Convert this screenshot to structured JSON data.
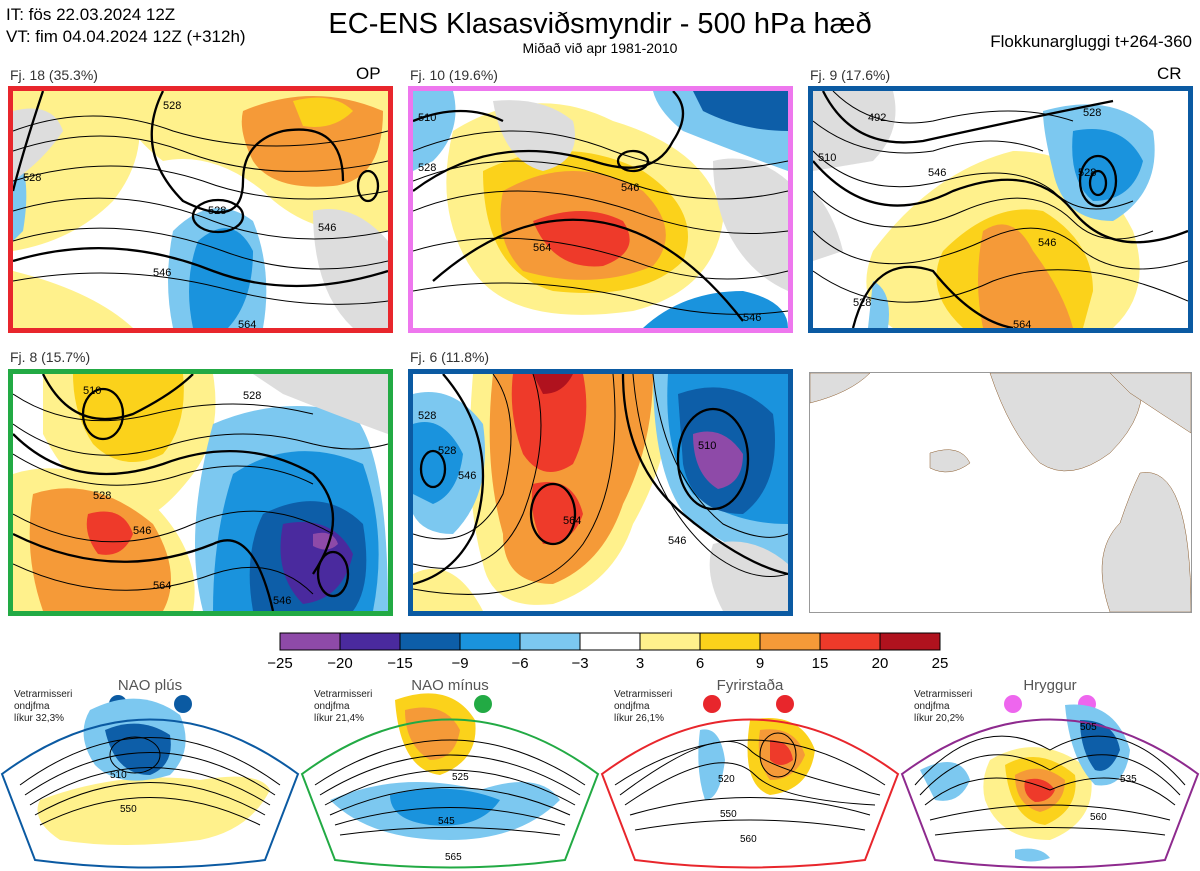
{
  "header": {
    "it_line": "IT: fös 22.03.2024 12Z",
    "vt_line": "VT: fim 04.04.2024 12Z  (+312h)",
    "title": "EC-ENS Klasasviðsmyndir - 500 hPa hæð",
    "subtitle": "Miðað við apr 1981-2010",
    "window": "Flokkunargluggi t+264-360"
  },
  "panels": [
    {
      "label": "Fj. 18 (35.3%)",
      "tag": "OP",
      "border": "#e8262c",
      "contours": [
        "528",
        "528",
        "546",
        "546",
        "564",
        "528"
      ]
    },
    {
      "label": "Fj. 10 (19.6%)",
      "tag": "",
      "border": "#ee77ee",
      "contours": [
        "510",
        "528",
        "546",
        "564",
        "546"
      ]
    },
    {
      "label": "Fj. 9 (17.6%)",
      "tag": "CR",
      "border": "#0b5aa2",
      "contours": [
        "492",
        "510",
        "528",
        "528",
        "546",
        "546",
        "528",
        "564"
      ]
    },
    {
      "label": "Fj. 8 (15.7%)",
      "tag": "",
      "border": "#22aa44",
      "contours": [
        "510",
        "528",
        "528",
        "546",
        "564",
        "546"
      ]
    },
    {
      "label": "Fj. 6 (11.8%)",
      "tag": "",
      "border": "#0b5aa2",
      "contours": [
        "528",
        "528",
        "546",
        "510",
        "564",
        "546"
      ]
    }
  ],
  "colorbar": {
    "ticks": [
      "−25",
      "−20",
      "−15",
      "−9",
      "−6",
      "−3",
      "3",
      "6",
      "9",
      "15",
      "20",
      "25"
    ],
    "colors": [
      "#8e4aa8",
      "#4a2a9e",
      "#0d5ea8",
      "#1a93dd",
      "#7cc8f0",
      "#ffffff",
      "#fff18c",
      "#fbd21b",
      "#f59a38",
      "#ee3a2a",
      "#b0121e"
    ]
  },
  "regimes": [
    {
      "title": "NAO plús",
      "note": [
        "Vetrarmisseri",
        "ondjfma",
        "líkur 32,3%"
      ],
      "border": "#0b5aa2",
      "dot": "#0b5aa2",
      "contours": [
        "510",
        "550"
      ]
    },
    {
      "title": "NAO mínus",
      "note": [
        "Vetrarmisseri",
        "ondjfma",
        "líkur 21,4%"
      ],
      "border": "#22aa44",
      "dot": "#22aa44",
      "contours": [
        "525",
        "545",
        "565"
      ]
    },
    {
      "title": "Fyrirstaða",
      "note": [
        "Vetrarmisseri",
        "ondjfma",
        "líkur 26,1%"
      ],
      "border": "#e8262c",
      "dot": "#e8262c",
      "contours": [
        "520",
        "550",
        "560"
      ]
    },
    {
      "title": "Hryggur",
      "note": [
        "Vetrarmisseri",
        "ondjfma",
        "líkur 20,2%"
      ],
      "border": "#8e2a8e",
      "dot": "#ee66ee",
      "contours": [
        "505",
        "535",
        "560"
      ]
    }
  ]
}
